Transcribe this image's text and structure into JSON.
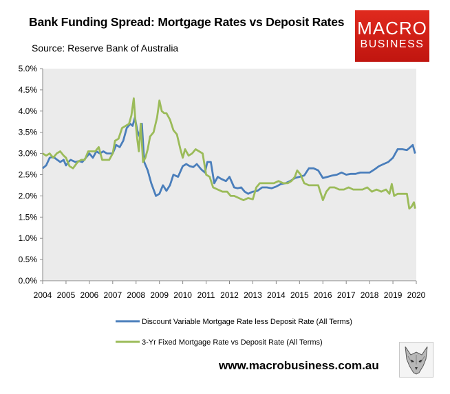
{
  "header": {
    "title": "Bank Funding Spread: Mortgage Rates vs Deposit Rates",
    "source": "Source: Reserve Bank of Australia"
  },
  "logo": {
    "line1": "MACRO",
    "line2": "BUSINESS"
  },
  "footer": {
    "website": "www.macrobusiness.com.au"
  },
  "chart_data": {
    "type": "line",
    "x_unit": "year",
    "xlim": [
      2004,
      2020
    ],
    "ylim": [
      0,
      5
    ],
    "yticks": [
      "0.0%",
      "0.5%",
      "1.0%",
      "1.5%",
      "2.0%",
      "2.5%",
      "3.0%",
      "3.5%",
      "4.0%",
      "4.5%",
      "5.0%"
    ],
    "xticks": [
      "2004",
      "2005",
      "2006",
      "2007",
      "2008",
      "2009",
      "2010",
      "2011",
      "2012",
      "2013",
      "2014",
      "2015",
      "2016",
      "2017",
      "2018",
      "2019",
      "2020"
    ],
    "grid": "none",
    "plot_background": "#ebebeb",
    "legend_position": "bottom",
    "series": [
      {
        "name": "Discount Variable Mortgage Rate less Deposit Rate (All Terms)",
        "color": "#4a7ebb",
        "x": [
          2004.0,
          2004.15,
          2004.3,
          2004.45,
          2004.55,
          2004.75,
          2004.9,
          2005.0,
          2005.1,
          2005.2,
          2005.4,
          2005.55,
          2005.7,
          2005.85,
          2006.0,
          2006.15,
          2006.3,
          2006.45,
          2006.6,
          2006.75,
          2007.0,
          2007.15,
          2007.3,
          2007.45,
          2007.6,
          2007.75,
          2007.85,
          2007.95,
          2008.05,
          2008.15,
          2008.25,
          2008.35,
          2008.5,
          2008.65,
          2008.85,
          2009.0,
          2009.15,
          2009.3,
          2009.45,
          2009.6,
          2009.8,
          2010.0,
          2010.15,
          2010.3,
          2010.45,
          2010.6,
          2010.8,
          2010.95,
          2011.05,
          2011.2,
          2011.35,
          2011.5,
          2011.65,
          2011.85,
          2012.0,
          2012.2,
          2012.35,
          2012.5,
          2012.65,
          2012.8,
          2013.0,
          2013.2,
          2013.4,
          2013.6,
          2013.8,
          2014.0,
          2014.2,
          2014.4,
          2014.6,
          2014.8,
          2015.0,
          2015.2,
          2015.4,
          2015.6,
          2015.8,
          2016.0,
          2016.2,
          2016.4,
          2016.6,
          2016.8,
          2017.0,
          2017.2,
          2017.4,
          2017.6,
          2017.8,
          2018.0,
          2018.2,
          2018.4,
          2018.6,
          2018.8,
          2019.0,
          2019.2,
          2019.4,
          2019.6,
          2019.75,
          2019.85,
          2019.95
        ],
        "y": [
          2.65,
          2.72,
          2.9,
          2.92,
          2.88,
          2.8,
          2.85,
          2.72,
          2.8,
          2.85,
          2.8,
          2.82,
          2.8,
          2.9,
          3.0,
          2.9,
          3.05,
          3.0,
          3.05,
          3.0,
          3.0,
          3.2,
          3.15,
          3.3,
          3.6,
          3.7,
          3.65,
          3.85,
          3.55,
          3.4,
          3.7,
          2.8,
          2.6,
          2.3,
          2.0,
          2.05,
          2.25,
          2.12,
          2.25,
          2.5,
          2.45,
          2.7,
          2.75,
          2.7,
          2.68,
          2.75,
          2.62,
          2.55,
          2.8,
          2.8,
          2.3,
          2.45,
          2.4,
          2.35,
          2.45,
          2.2,
          2.18,
          2.2,
          2.1,
          2.05,
          2.1,
          2.12,
          2.2,
          2.2,
          2.18,
          2.22,
          2.28,
          2.3,
          2.35,
          2.42,
          2.45,
          2.48,
          2.65,
          2.65,
          2.6,
          2.42,
          2.45,
          2.48,
          2.5,
          2.55,
          2.5,
          2.52,
          2.52,
          2.55,
          2.55,
          2.55,
          2.62,
          2.7,
          2.75,
          2.8,
          2.9,
          3.1,
          3.1,
          3.08,
          3.15,
          3.2,
          3.0
        ]
      },
      {
        "name": "3-Yr Fixed Mortgage Rate vs Deposit Rate (All Terms)",
        "color": "#9bbb59",
        "x": [
          2004.0,
          2004.15,
          2004.3,
          2004.45,
          2004.6,
          2004.75,
          2004.9,
          2005.0,
          2005.15,
          2005.3,
          2005.5,
          2005.65,
          2005.8,
          2005.95,
          2006.1,
          2006.25,
          2006.4,
          2006.55,
          2006.7,
          2006.85,
          2007.0,
          2007.1,
          2007.25,
          2007.4,
          2007.55,
          2007.7,
          2007.8,
          2007.9,
          2007.97,
          2008.05,
          2008.12,
          2008.2,
          2008.3,
          2008.4,
          2008.5,
          2008.6,
          2008.75,
          2008.9,
          2009.0,
          2009.1,
          2009.2,
          2009.3,
          2009.45,
          2009.6,
          2009.75,
          2009.9,
          2010.0,
          2010.1,
          2010.25,
          2010.4,
          2010.55,
          2010.7,
          2010.85,
          2011.0,
          2011.15,
          2011.3,
          2011.5,
          2011.7,
          2011.9,
          2012.05,
          2012.2,
          2012.4,
          2012.6,
          2012.8,
          2013.0,
          2013.15,
          2013.3,
          2013.5,
          2013.7,
          2013.9,
          2014.1,
          2014.3,
          2014.5,
          2014.65,
          2014.8,
          2014.9,
          2015.05,
          2015.2,
          2015.4,
          2015.6,
          2015.8,
          2016.0,
          2016.15,
          2016.3,
          2016.5,
          2016.7,
          2016.9,
          2017.1,
          2017.3,
          2017.5,
          2017.7,
          2017.9,
          2018.1,
          2018.3,
          2018.5,
          2018.7,
          2018.85,
          2018.95,
          2019.05,
          2019.2,
          2019.4,
          2019.6,
          2019.7,
          2019.8,
          2019.9,
          2019.95
        ],
        "y": [
          3.0,
          2.95,
          3.0,
          2.9,
          3.0,
          3.05,
          2.95,
          2.9,
          2.7,
          2.65,
          2.8,
          2.85,
          2.85,
          3.05,
          3.05,
          3.05,
          3.15,
          2.85,
          2.85,
          2.85,
          3.0,
          3.3,
          3.35,
          3.6,
          3.65,
          3.7,
          3.9,
          4.3,
          3.8,
          3.35,
          3.05,
          3.7,
          2.8,
          2.9,
          3.1,
          3.4,
          3.5,
          3.85,
          4.25,
          4.0,
          3.95,
          3.95,
          3.8,
          3.55,
          3.45,
          3.1,
          2.9,
          3.1,
          2.95,
          3.0,
          3.1,
          3.05,
          3.0,
          2.5,
          2.45,
          2.2,
          2.15,
          2.1,
          2.1,
          2.0,
          2.0,
          1.95,
          1.9,
          1.95,
          1.92,
          2.2,
          2.3,
          2.3,
          2.3,
          2.3,
          2.35,
          2.3,
          2.3,
          2.35,
          2.45,
          2.6,
          2.5,
          2.3,
          2.25,
          2.25,
          2.25,
          1.9,
          2.1,
          2.2,
          2.2,
          2.15,
          2.15,
          2.2,
          2.15,
          2.15,
          2.15,
          2.2,
          2.1,
          2.15,
          2.1,
          2.15,
          2.05,
          2.28,
          2.0,
          2.05,
          2.05,
          2.05,
          1.7,
          1.75,
          1.85,
          1.7
        ]
      }
    ]
  }
}
